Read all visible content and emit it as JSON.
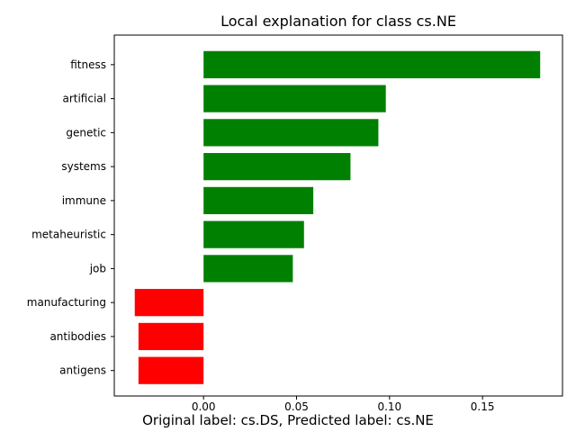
{
  "chart_data": {
    "type": "bar",
    "orientation": "horizontal",
    "title": "Local explanation for class cs.NE",
    "xlabel": "",
    "ylabel": "",
    "categories": [
      "fitness",
      "artificial",
      "genetic",
      "systems",
      "immune",
      "metaheuristic",
      "job",
      "manufacturing",
      "antibodies",
      "antigens"
    ],
    "values": [
      0.181,
      0.098,
      0.094,
      0.079,
      0.059,
      0.054,
      0.048,
      -0.037,
      -0.035,
      -0.035
    ],
    "xlim": [
      -0.048,
      0.193
    ],
    "xticks": [
      0.0,
      0.05,
      0.1,
      0.15
    ],
    "xtick_labels": [
      "0.00",
      "0.05",
      "0.10",
      "0.15"
    ],
    "grid": false,
    "colors": {
      "positive": "#008000",
      "negative": "#ff0000",
      "axes": "#000000"
    }
  },
  "caption": "Original label: cs.DS, Predicted label: cs.NE"
}
